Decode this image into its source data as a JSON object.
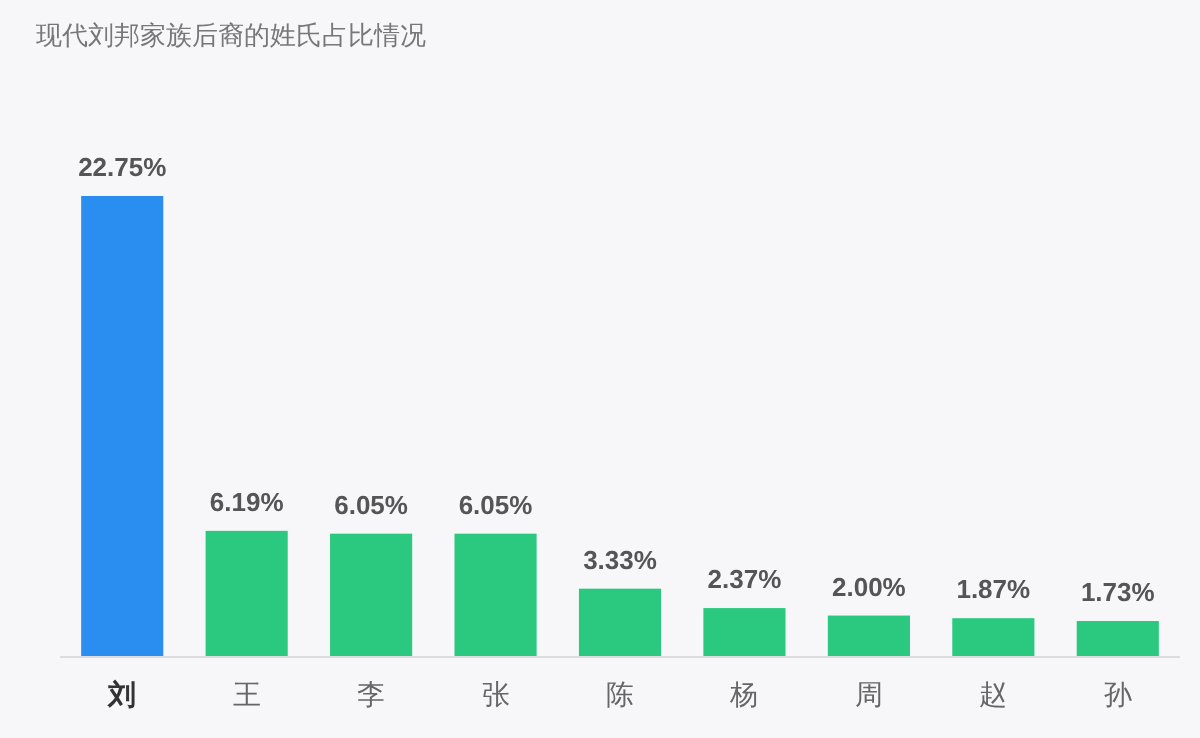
{
  "chart_data": {
    "type": "bar",
    "title": "现代刘邦家族后裔的姓氏占比情况",
    "categories": [
      "刘",
      "王",
      "李",
      "张",
      "陈",
      "杨",
      "周",
      "赵",
      "孙"
    ],
    "values": [
      22.75,
      6.19,
      6.05,
      6.05,
      3.33,
      2.37,
      2.0,
      1.87,
      1.73
    ],
    "value_labels": [
      "22.75%",
      "6.19%",
      "6.05%",
      "6.05%",
      "3.33%",
      "2.37%",
      "2.00%",
      "1.87%",
      "1.73%"
    ],
    "colors": [
      "#2a8ef0",
      "#2bc97f",
      "#2bc97f",
      "#2bc97f",
      "#2bc97f",
      "#2bc97f",
      "#2bc97f",
      "#2bc97f",
      "#2bc97f"
    ]
  }
}
